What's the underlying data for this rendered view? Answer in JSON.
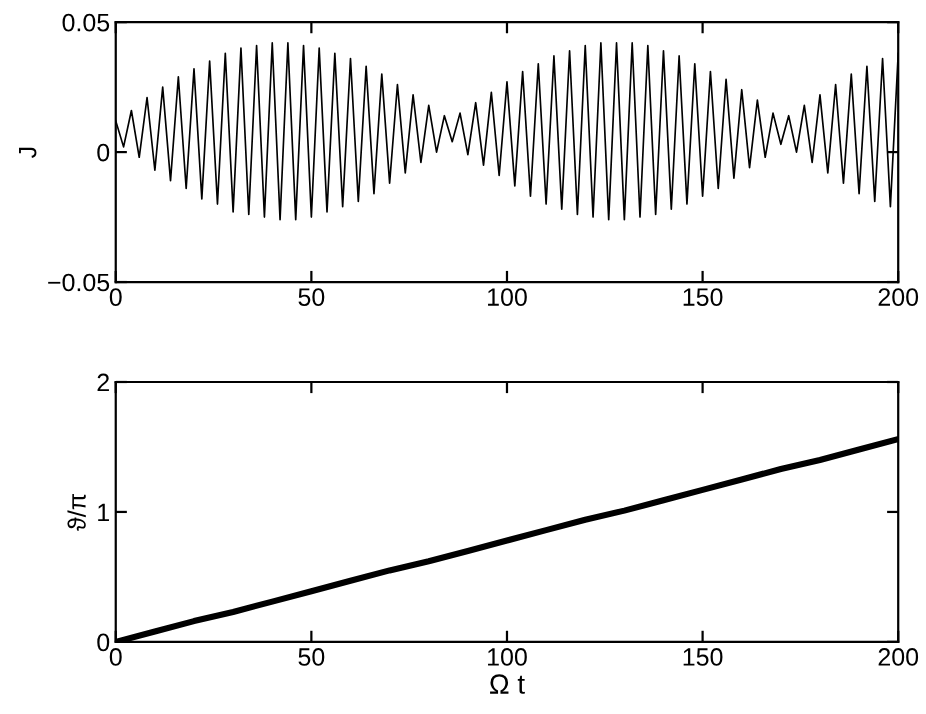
{
  "chart_data": [
    {
      "type": "line",
      "ylabel": "J",
      "xlim": [
        0,
        200
      ],
      "xticks": [
        0,
        50,
        100,
        150,
        200
      ],
      "ylim": [
        -0.05,
        0.05
      ],
      "yticks": [
        {
          "value": -0.05,
          "label": "−0.05"
        },
        0,
        0.05
      ],
      "grid": false,
      "marker": "none",
      "line_style": "solid",
      "x": [
        0,
        2,
        4,
        6,
        8,
        10,
        12,
        14,
        16,
        18,
        20,
        22,
        24,
        26,
        28,
        30,
        32,
        34,
        36,
        38,
        40,
        42,
        44,
        46,
        48,
        50,
        52,
        54,
        56,
        58,
        60,
        62,
        64,
        66,
        68,
        70,
        72,
        74,
        76,
        78,
        80,
        82,
        84,
        86,
        88,
        90,
        92,
        94,
        96,
        98,
        100,
        102,
        104,
        106,
        108,
        110,
        112,
        114,
        116,
        118,
        120,
        122,
        124,
        126,
        128,
        130,
        132,
        134,
        136,
        138,
        140,
        142,
        144,
        146,
        148,
        150,
        152,
        154,
        156,
        158,
        160,
        162,
        164,
        166,
        168,
        170,
        172,
        174,
        176,
        178,
        180,
        182,
        184,
        186,
        188,
        190,
        192,
        194,
        196,
        198,
        200
      ],
      "series": [
        {
          "color": "#000000",
          "values": [
            0.012,
            0.002,
            0.016,
            -0.002,
            0.021,
            -0.007,
            0.025,
            -0.011,
            0.029,
            -0.014,
            0.032,
            -0.018,
            0.035,
            -0.02,
            0.038,
            -0.023,
            0.04,
            -0.024,
            0.041,
            -0.025,
            0.042,
            -0.026,
            0.042,
            -0.026,
            0.041,
            -0.025,
            0.04,
            -0.023,
            0.038,
            -0.021,
            0.036,
            -0.019,
            0.033,
            -0.016,
            0.03,
            -0.012,
            0.026,
            -0.008,
            0.022,
            -0.004,
            0.018,
            0.0,
            0.014,
            0.004,
            0.015,
            -0.001,
            0.019,
            -0.005,
            0.023,
            -0.009,
            0.027,
            -0.013,
            0.031,
            -0.017,
            0.034,
            -0.02,
            0.037,
            -0.022,
            0.039,
            -0.024,
            0.041,
            -0.025,
            0.042,
            -0.026,
            0.042,
            -0.026,
            0.042,
            -0.025,
            0.041,
            -0.024,
            0.039,
            -0.022,
            0.037,
            -0.02,
            0.034,
            -0.017,
            0.031,
            -0.014,
            0.028,
            -0.01,
            0.024,
            -0.006,
            0.02,
            -0.002,
            0.015,
            0.003,
            0.014,
            0.0,
            0.018,
            -0.004,
            0.022,
            -0.008,
            0.026,
            -0.012,
            0.03,
            -0.016,
            0.033,
            -0.019,
            0.036,
            -0.021,
            0.038
          ]
        }
      ]
    },
    {
      "type": "line",
      "xlabel": "Ω t",
      "ylabel": "ϑ/π",
      "xlim": [
        0,
        200
      ],
      "xticks": [
        0,
        50,
        100,
        150,
        200
      ],
      "ylim": [
        0,
        2
      ],
      "yticks": [
        0,
        1,
        2
      ],
      "grid": false,
      "marker": "none",
      "line_style": "solid",
      "x": [
        0,
        10,
        20,
        30,
        40,
        50,
        60,
        70,
        80,
        90,
        100,
        110,
        120,
        130,
        140,
        150,
        160,
        170,
        180,
        190,
        200
      ],
      "series": [
        {
          "color": "#000000",
          "values": [
            0,
            0.08,
            0.16,
            0.23,
            0.31,
            0.39,
            0.47,
            0.55,
            0.62,
            0.7,
            0.78,
            0.86,
            0.94,
            1.01,
            1.09,
            1.17,
            1.25,
            1.33,
            1.4,
            1.48,
            1.56
          ]
        }
      ]
    }
  ]
}
